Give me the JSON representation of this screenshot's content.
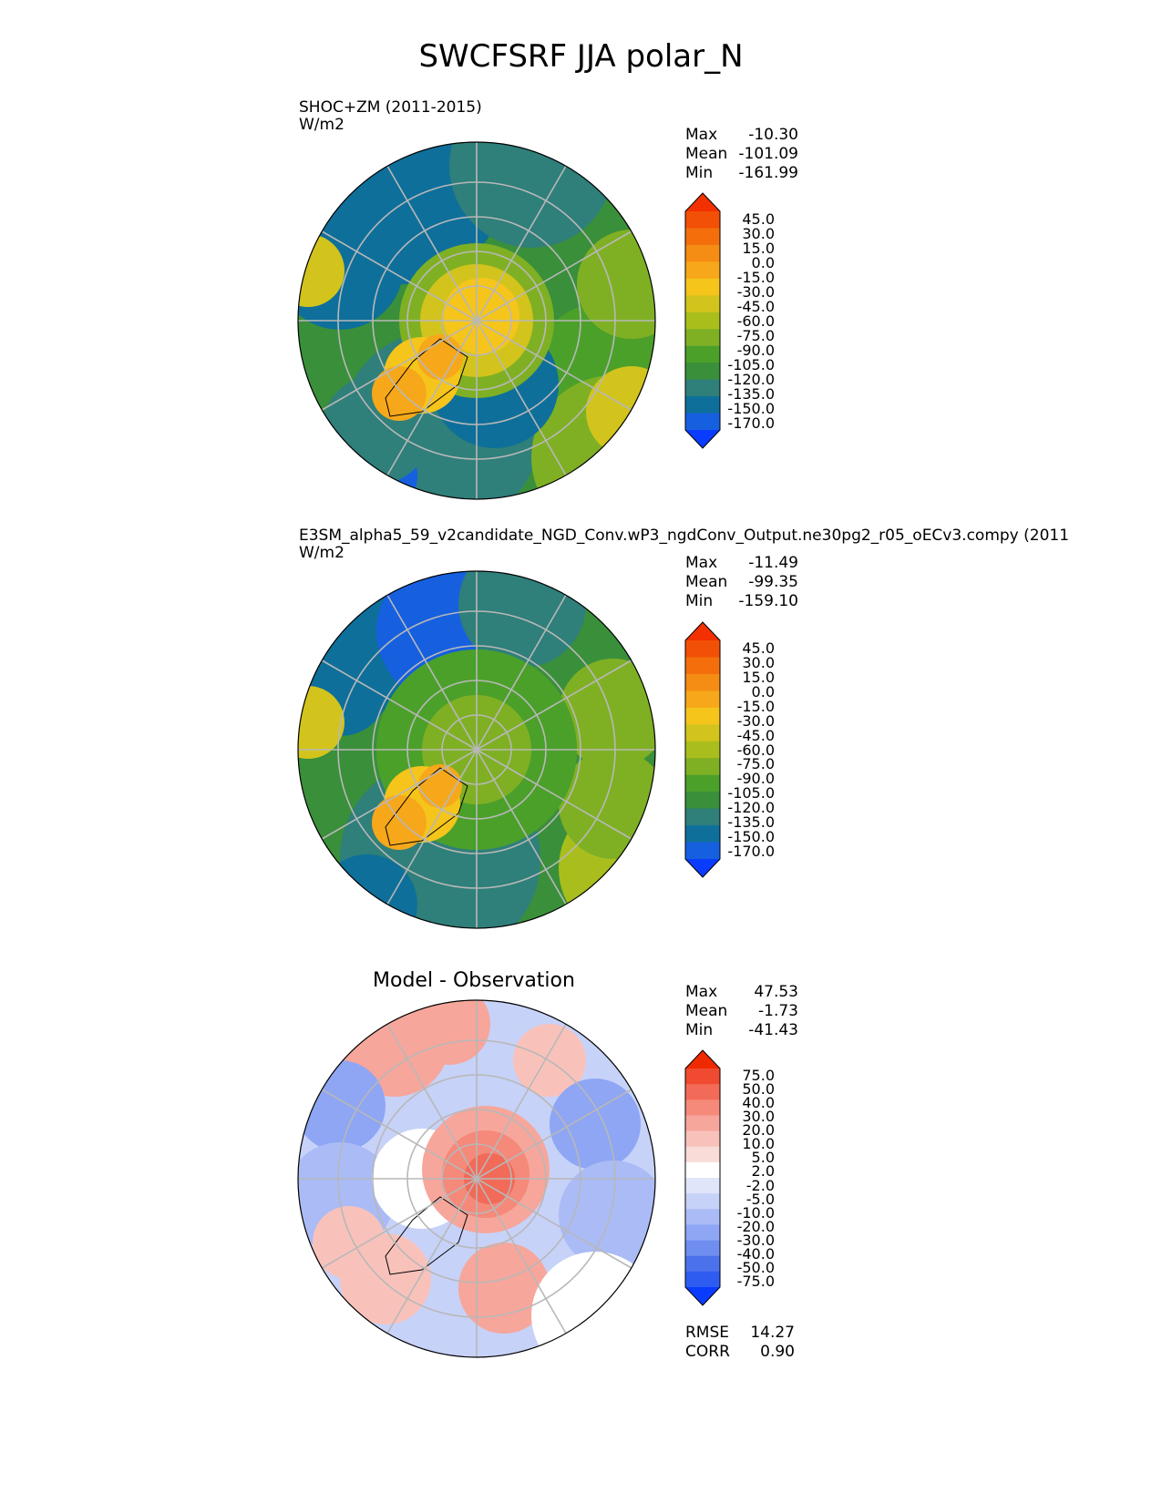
{
  "figure": {
    "title": "SWCFSRF JJA polar_N"
  },
  "panels": [
    {
      "title_lines": [
        "SHOC+ZM (2011-2015)",
        "W/m2"
      ],
      "stats": [
        {
          "label": "Max",
          "value": "-10.30"
        },
        {
          "label": "Mean",
          "value": "-101.09"
        },
        {
          "label": "Min",
          "value": "-161.99"
        }
      ],
      "colorbar_ticks": [
        "45.0",
        "30.0",
        "15.0",
        "0.0",
        "-15.0",
        "-30.0",
        "-45.0",
        "-60.0",
        "-75.0",
        "-90.0",
        "-105.0",
        "-120.0",
        "-135.0",
        "-150.0",
        "-170.0"
      ]
    },
    {
      "title_lines": [
        "E3SM_alpha5_59_v2candidate_NGD_Conv.wP3_ngdConv_Output.ne30pg2_r05_oECv3.compy (2011",
        "W/m2"
      ],
      "stats": [
        {
          "label": "Max",
          "value": "-11.49"
        },
        {
          "label": "Mean",
          "value": "-99.35"
        },
        {
          "label": "Min",
          "value": "-159.10"
        }
      ],
      "colorbar_ticks": [
        "45.0",
        "30.0",
        "15.0",
        "0.0",
        "-15.0",
        "-30.0",
        "-45.0",
        "-60.0",
        "-75.0",
        "-90.0",
        "-105.0",
        "-120.0",
        "-135.0",
        "-150.0",
        "-170.0"
      ]
    },
    {
      "title": "Model - Observation",
      "stats": [
        {
          "label": "Max",
          "value": "47.53"
        },
        {
          "label": "Mean",
          "value": "-1.73"
        },
        {
          "label": "Min",
          "value": "-41.43"
        }
      ],
      "colorbar_ticks": [
        "75.0",
        "50.0",
        "40.0",
        "30.0",
        "20.0",
        "10.0",
        "5.0",
        "2.0",
        "-2.0",
        "-5.0",
        "-10.0",
        "-20.0",
        "-30.0",
        "-40.0",
        "-50.0",
        "-75.0"
      ],
      "metrics": [
        {
          "label": "RMSE",
          "value": "14.27"
        },
        {
          "label": "CORR",
          "value": "0.90"
        }
      ]
    }
  ],
  "colors": {
    "field_scale": [
      "#0a3cff",
      "#1660e0",
      "#0e6f9a",
      "#2f7f7a",
      "#3a8f3a",
      "#4ba02a",
      "#7fb024",
      "#a9be1c",
      "#d2c41c",
      "#f5c51c",
      "#f6a81a",
      "#f58c14",
      "#f46f0c",
      "#f25006",
      "#f23000"
    ],
    "diff_scale": [
      "#0a3cff",
      "#2f5cf0",
      "#4b72ec",
      "#6f8ef0",
      "#8ea6f4",
      "#aabbf6",
      "#c7d2f8",
      "#e0e6fa",
      "#ffffff",
      "#f9dcd8",
      "#f8c2bb",
      "#f7a69b",
      "#f5897a",
      "#f26a58",
      "#f04a30",
      "#f02a00"
    ],
    "grid": "#b8b8b8",
    "coast": "#000000"
  },
  "chart_data": [
    {
      "type": "heatmap",
      "projection": "north polar stereographic",
      "title": "SHOC+ZM (2011-2015)",
      "units": "W/m2",
      "stats": {
        "max": -10.3,
        "mean": -101.09,
        "min": -161.99
      },
      "levels": [
        -170,
        -150,
        -135,
        -120,
        -105,
        -90,
        -75,
        -60,
        -45,
        -30,
        -15,
        0,
        15,
        30,
        45
      ],
      "extend": "both"
    },
    {
      "type": "heatmap",
      "projection": "north polar stereographic",
      "title": "E3SM_alpha5_59_v2candidate_NGD_Conv.wP3_ngdConv_Output.ne30pg2_r05_oECv3.compy (2011",
      "units": "W/m2",
      "stats": {
        "max": -11.49,
        "mean": -99.35,
        "min": -159.1
      },
      "levels": [
        -170,
        -150,
        -135,
        -120,
        -105,
        -90,
        -75,
        -60,
        -45,
        -30,
        -15,
        0,
        15,
        30,
        45
      ],
      "extend": "both"
    },
    {
      "type": "heatmap",
      "projection": "north polar stereographic",
      "title": "Model - Observation",
      "stats": {
        "max": 47.53,
        "mean": -1.73,
        "min": -41.43,
        "rmse": 14.27,
        "corr": 0.9
      },
      "levels": [
        -75,
        -50,
        -40,
        -30,
        -20,
        -10,
        -5,
        -2,
        2,
        5,
        10,
        20,
        30,
        40,
        50,
        75
      ],
      "extend": "both"
    }
  ]
}
